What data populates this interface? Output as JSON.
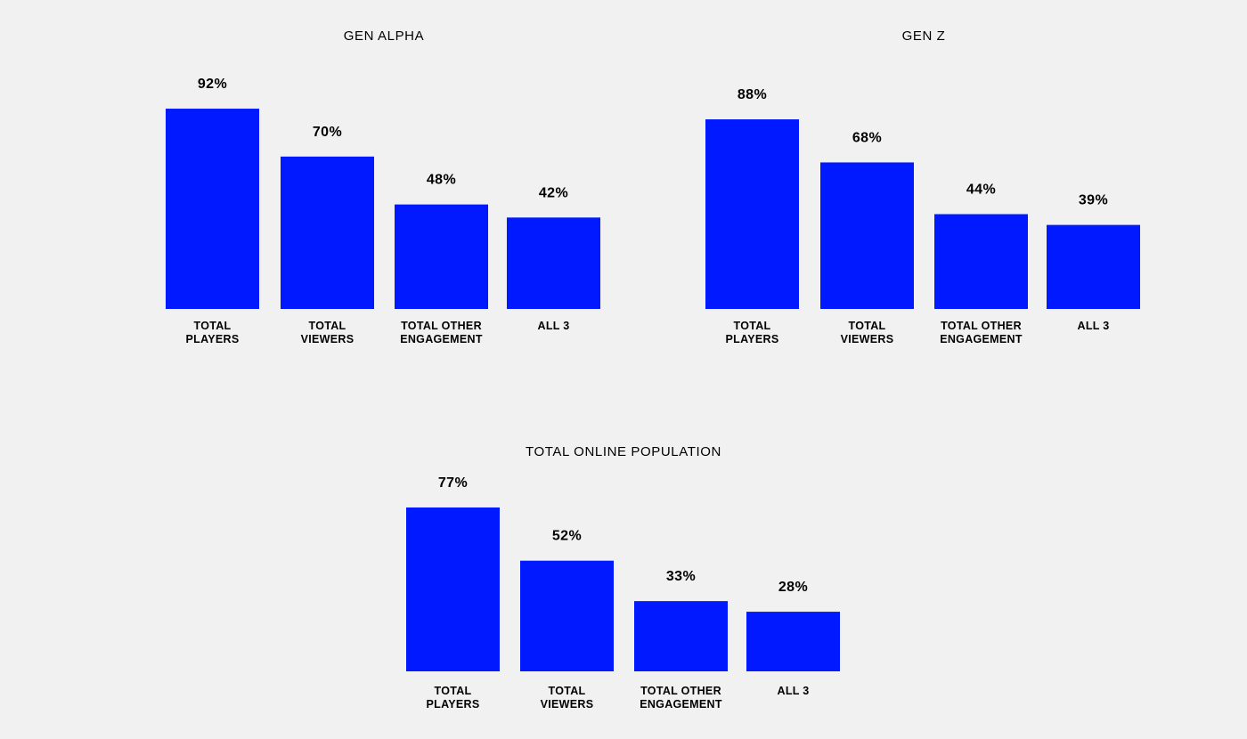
{
  "colors": {
    "background": "#f1f1f1",
    "bar": "#0019ff",
    "text": "#000000"
  },
  "chart_data": [
    {
      "type": "bar",
      "title": "GEN ALPHA",
      "categories": [
        "TOTAL\nPLAYERS",
        "TOTAL\nVIEWERS",
        "TOTAL OTHER\nENGAGEMENT",
        "ALL 3"
      ],
      "values": [
        92,
        70,
        48,
        42
      ],
      "value_labels": [
        "92%",
        "70%",
        "48%",
        "42%"
      ],
      "ylim": [
        0,
        100
      ],
      "grid": false,
      "legend": "none"
    },
    {
      "type": "bar",
      "title": "GEN Z",
      "categories": [
        "TOTAL\nPLAYERS",
        "TOTAL\nVIEWERS",
        "TOTAL OTHER\nENGAGEMENT",
        "ALL 3"
      ],
      "values": [
        88,
        68,
        44,
        39
      ],
      "value_labels": [
        "88%",
        "68%",
        "44%",
        "39%"
      ],
      "ylim": [
        0,
        100
      ],
      "grid": false,
      "legend": "none"
    },
    {
      "type": "bar",
      "title": "TOTAL ONLINE POPULATION",
      "categories": [
        "TOTAL\nPLAYERS",
        "TOTAL\nVIEWERS",
        "TOTAL OTHER\nENGAGEMENT",
        "ALL 3"
      ],
      "values": [
        77,
        52,
        33,
        28
      ],
      "value_labels": [
        "77%",
        "52%",
        "33%",
        "28%"
      ],
      "ylim": [
        0,
        100
      ],
      "grid": false,
      "legend": "none"
    }
  ]
}
